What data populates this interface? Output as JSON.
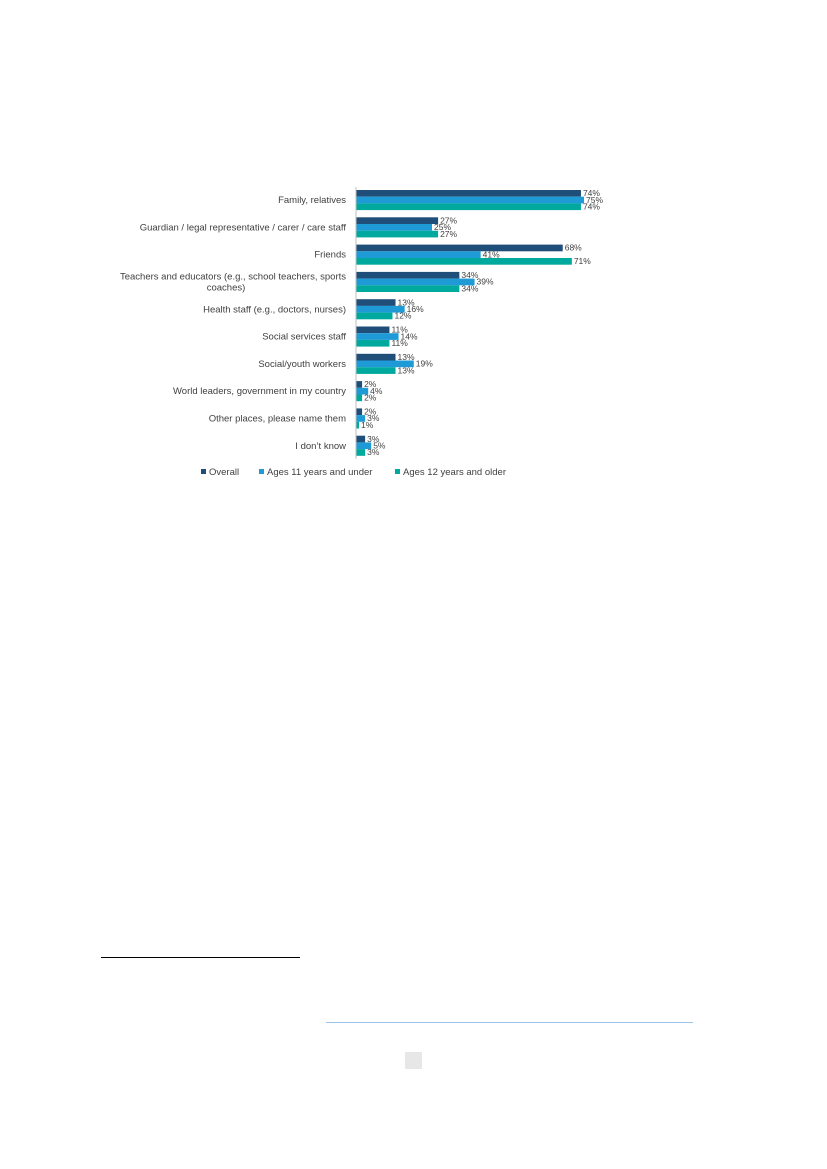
{
  "chart_data": {
    "type": "bar",
    "orientation": "horizontal",
    "categories": [
      [
        "Family, relatives"
      ],
      [
        "Guardian / legal representative / carer / care staff"
      ],
      [
        "Friends"
      ],
      [
        "Teachers and educators (e.g., school teachers, sports",
        "coaches)"
      ],
      [
        "Health staff (e.g., doctors, nurses)"
      ],
      [
        "Social services staff"
      ],
      [
        "Social/youth workers"
      ],
      [
        "World leaders, government in my country"
      ],
      [
        "Other places, please name them"
      ],
      [
        "I don’t know"
      ]
    ],
    "series": [
      {
        "name": "Overall",
        "color": "#1f4e79",
        "values": [
          74,
          27,
          68,
          34,
          13,
          11,
          13,
          2,
          2,
          3
        ]
      },
      {
        "name": "Ages 11 years and under",
        "color": "#1e9ad6",
        "values": [
          75,
          25,
          41,
          39,
          16,
          14,
          19,
          4,
          3,
          5
        ]
      },
      {
        "name": "Ages 12 years and older",
        "color": "#00a99d",
        "values": [
          74,
          27,
          71,
          34,
          12,
          11,
          13,
          2,
          1,
          3
        ]
      }
    ],
    "value_suffix": "%",
    "xlim": [
      0,
      100
    ],
    "grid": false,
    "legend_position": "bottom"
  }
}
